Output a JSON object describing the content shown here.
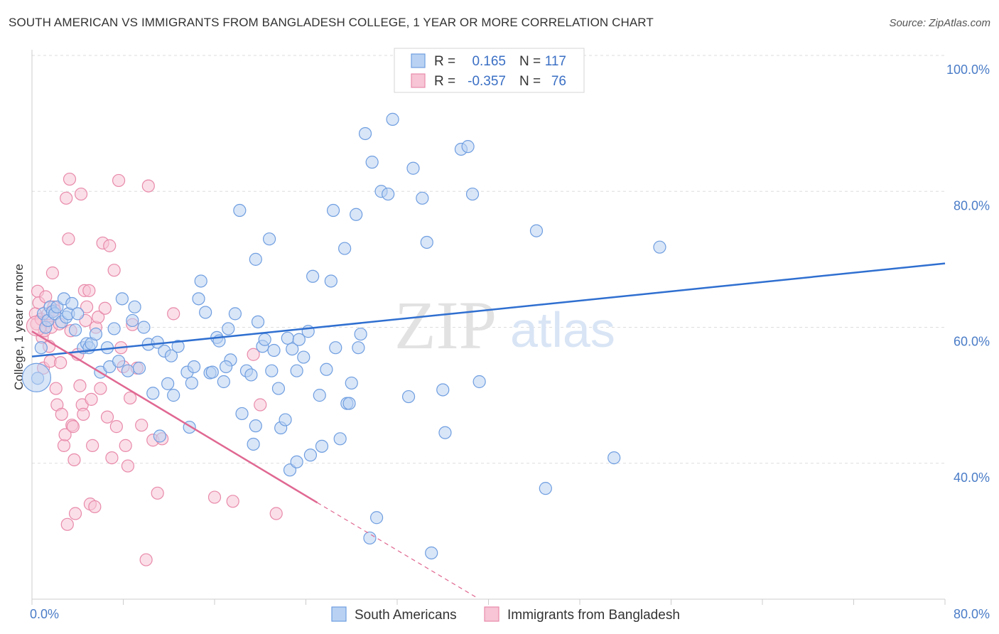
{
  "title": "SOUTH AMERICAN VS IMMIGRANTS FROM BANGLADESH COLLEGE, 1 YEAR OR MORE CORRELATION CHART",
  "source": "Source: ZipAtlas.com",
  "watermark": {
    "zip": "ZIP",
    "atlas": "atlas"
  },
  "colors": {
    "blue_fill": "#b9d2f3",
    "blue_stroke": "#6f9ee0",
    "blue_line": "#2f6fd0",
    "pink_fill": "#f7c5d5",
    "pink_stroke": "#e88aaa",
    "pink_line": "#e06892",
    "grid": "#dddddd",
    "tick_label": "#4a7cc7"
  },
  "legend": {
    "rows": [
      {
        "r_label": "R =",
        "r_value": "0.165",
        "n_label": "N =",
        "n_value": "117"
      },
      {
        "r_label": "R =",
        "r_value": "-0.357",
        "n_label": "N =",
        "n_value": "76"
      }
    ]
  },
  "chart_data": {
    "type": "scatter",
    "title": "SOUTH AMERICAN VS IMMIGRANTS FROM BANGLADESH COLLEGE, 1 YEAR OR MORE CORRELATION CHART",
    "xlabel": "",
    "ylabel": "College, 1 year or more",
    "xlim": [
      0,
      80
    ],
    "ylim": [
      20,
      100
    ],
    "x_tick_labels": [
      "0.0%",
      "80.0%"
    ],
    "y_tick_labels": [
      "100.0%",
      "80.0%",
      "60.0%",
      "40.0%"
    ],
    "y_ticks": [
      100,
      80,
      60,
      40
    ],
    "grid": true,
    "legend_position": "bottom",
    "series": [
      {
        "name": "South Americans",
        "trend": {
          "x": [
            0,
            80
          ],
          "y": [
            55.7,
            69.4
          ]
        },
        "points": [
          [
            0.5,
            52.5
          ],
          [
            0.8,
            57
          ],
          [
            1.0,
            62
          ],
          [
            1.2,
            60
          ],
          [
            1.4,
            61
          ],
          [
            1.6,
            63
          ],
          [
            1.8,
            62.3
          ],
          [
            2.0,
            62
          ],
          [
            2.2,
            63
          ],
          [
            2.6,
            60.8
          ],
          [
            2.8,
            64.2
          ],
          [
            3.0,
            61.5
          ],
          [
            3.2,
            62
          ],
          [
            3.5,
            63.5
          ],
          [
            3.8,
            59.6
          ],
          [
            4.0,
            62
          ],
          [
            4.5,
            57
          ],
          [
            4.8,
            57.6
          ],
          [
            5.0,
            57
          ],
          [
            5.2,
            57.6
          ],
          [
            5.6,
            59
          ],
          [
            6.0,
            53.4
          ],
          [
            6.6,
            57
          ],
          [
            6.8,
            54.2
          ],
          [
            7.2,
            59.8
          ],
          [
            7.6,
            55
          ],
          [
            7.9,
            64.2
          ],
          [
            8.4,
            53.6
          ],
          [
            8.8,
            61
          ],
          [
            9.0,
            63
          ],
          [
            9.4,
            54
          ],
          [
            9.8,
            60
          ],
          [
            10.2,
            57.5
          ],
          [
            10.6,
            50.3
          ],
          [
            11.0,
            57.8
          ],
          [
            11.2,
            44
          ],
          [
            11.6,
            56.5
          ],
          [
            11.9,
            51.7
          ],
          [
            12.2,
            55.8
          ],
          [
            12.4,
            50
          ],
          [
            12.8,
            57.2
          ],
          [
            13.6,
            53.4
          ],
          [
            13.8,
            45.3
          ],
          [
            14.0,
            51.8
          ],
          [
            14.2,
            54.2
          ],
          [
            14.6,
            64.2
          ],
          [
            14.8,
            66.8
          ],
          [
            15.2,
            62.2
          ],
          [
            15.6,
            53.3
          ],
          [
            15.8,
            53.4
          ],
          [
            16.2,
            58.5
          ],
          [
            16.4,
            58
          ],
          [
            16.8,
            52
          ],
          [
            17.2,
            59.8
          ],
          [
            17.4,
            55.2
          ],
          [
            17.8,
            62
          ],
          [
            18.2,
            77.2
          ],
          [
            18.4,
            47.3
          ],
          [
            18.8,
            53.6
          ],
          [
            19.2,
            53
          ],
          [
            19.4,
            42.8
          ],
          [
            19.6,
            70
          ],
          [
            19.8,
            60.8
          ],
          [
            20.2,
            57.2
          ],
          [
            20.4,
            58.2
          ],
          [
            20.8,
            73
          ],
          [
            21.0,
            53.6
          ],
          [
            21.2,
            56.6
          ],
          [
            21.6,
            51
          ],
          [
            21.8,
            45.2
          ],
          [
            22.2,
            46.4
          ],
          [
            22.4,
            58.4
          ],
          [
            22.8,
            56.8
          ],
          [
            23.2,
            53.6
          ],
          [
            23.4,
            58.2
          ],
          [
            23.8,
            55.6
          ],
          [
            24.2,
            59.4
          ],
          [
            24.6,
            67.5
          ],
          [
            25.2,
            50
          ],
          [
            25.4,
            42.5
          ],
          [
            25.8,
            53.8
          ],
          [
            26.2,
            66.8
          ],
          [
            26.4,
            77.2
          ],
          [
            26.6,
            57
          ],
          [
            27.0,
            43.6
          ],
          [
            27.4,
            71.6
          ],
          [
            27.6,
            48.8
          ],
          [
            27.8,
            48.8
          ],
          [
            28.0,
            51.8
          ],
          [
            28.4,
            76.6
          ],
          [
            28.6,
            57
          ],
          [
            28.8,
            59
          ],
          [
            29.2,
            88.5
          ],
          [
            29.6,
            29
          ],
          [
            29.8,
            84.3
          ],
          [
            30.2,
            32
          ],
          [
            30.6,
            80
          ],
          [
            31.2,
            79.6
          ],
          [
            31.6,
            90.6
          ],
          [
            33.4,
            83.4
          ],
          [
            34.2,
            79
          ],
          [
            34.6,
            72.5
          ],
          [
            35.0,
            26.8
          ],
          [
            36.0,
            50.8
          ],
          [
            37.6,
            86.2
          ],
          [
            38.2,
            86.6
          ],
          [
            38.6,
            79.6
          ],
          [
            39.2,
            52
          ],
          [
            44.2,
            74.2
          ],
          [
            45.0,
            36.3
          ],
          [
            51.0,
            40.8
          ],
          [
            55.0,
            71.8
          ],
          [
            22.6,
            39
          ],
          [
            23.2,
            40.2
          ],
          [
            24.4,
            41.2
          ],
          [
            19.6,
            45.5
          ],
          [
            36.2,
            44.5
          ],
          [
            17.0,
            54.2
          ],
          [
            33.0,
            49.8
          ]
        ]
      },
      {
        "name": "Immigrants from Bangladesh",
        "trend": {
          "x": [
            0,
            25
          ],
          "y": [
            59.4,
            34.2
          ]
        },
        "trend_dashed": {
          "x": [
            25,
            39
          ],
          "y": [
            34.2,
            20.2
          ]
        },
        "points": [
          [
            0.3,
            62
          ],
          [
            0.4,
            60.5
          ],
          [
            0.5,
            65.3
          ],
          [
            0.6,
            63.6
          ],
          [
            0.8,
            61.2
          ],
          [
            0.9,
            58.5
          ],
          [
            1.0,
            54
          ],
          [
            1.1,
            59.5
          ],
          [
            1.2,
            64.5
          ],
          [
            1.3,
            61
          ],
          [
            1.4,
            62
          ],
          [
            1.5,
            57.2
          ],
          [
            1.6,
            55
          ],
          [
            1.7,
            60
          ],
          [
            1.8,
            68
          ],
          [
            1.9,
            63
          ],
          [
            2.0,
            62.5
          ],
          [
            2.1,
            51
          ],
          [
            2.2,
            48.6
          ],
          [
            2.4,
            60.5
          ],
          [
            2.5,
            54.8
          ],
          [
            2.6,
            47.2
          ],
          [
            2.8,
            42.6
          ],
          [
            2.9,
            44.2
          ],
          [
            3.0,
            79
          ],
          [
            3.1,
            31
          ],
          [
            3.2,
            73
          ],
          [
            3.3,
            81.8
          ],
          [
            3.4,
            59.5
          ],
          [
            3.5,
            45.6
          ],
          [
            3.6,
            45.4
          ],
          [
            3.7,
            40.5
          ],
          [
            3.8,
            32.6
          ],
          [
            4.0,
            56
          ],
          [
            4.2,
            51.4
          ],
          [
            4.3,
            79.6
          ],
          [
            4.4,
            48.6
          ],
          [
            4.5,
            47.2
          ],
          [
            4.6,
            65.4
          ],
          [
            4.7,
            61
          ],
          [
            4.8,
            63
          ],
          [
            5.0,
            65.4
          ],
          [
            5.1,
            34
          ],
          [
            5.2,
            49.4
          ],
          [
            5.3,
            42.6
          ],
          [
            5.5,
            33.6
          ],
          [
            5.6,
            60
          ],
          [
            5.8,
            61.5
          ],
          [
            6.0,
            51
          ],
          [
            6.2,
            72.4
          ],
          [
            6.4,
            62.8
          ],
          [
            6.6,
            46.8
          ],
          [
            6.8,
            72
          ],
          [
            7.0,
            40.8
          ],
          [
            7.2,
            68.4
          ],
          [
            7.4,
            45.4
          ],
          [
            7.6,
            81.6
          ],
          [
            7.8,
            57
          ],
          [
            8.0,
            54.2
          ],
          [
            8.2,
            42.6
          ],
          [
            8.4,
            39.6
          ],
          [
            8.6,
            49.6
          ],
          [
            8.8,
            60.4
          ],
          [
            9.2,
            54
          ],
          [
            9.6,
            45.6
          ],
          [
            10.0,
            25.8
          ],
          [
            10.2,
            80.8
          ],
          [
            10.6,
            43.4
          ],
          [
            11.0,
            35.6
          ],
          [
            12.4,
            62
          ],
          [
            16.0,
            35
          ],
          [
            17.6,
            34.4
          ],
          [
            19.4,
            56
          ],
          [
            20.0,
            48.6
          ],
          [
            21.4,
            32.6
          ],
          [
            11.4,
            43.6
          ]
        ]
      }
    ]
  },
  "bottom_legend": {
    "items": [
      {
        "label": "South Americans"
      },
      {
        "label": "Immigrants from Bangladesh"
      }
    ]
  }
}
